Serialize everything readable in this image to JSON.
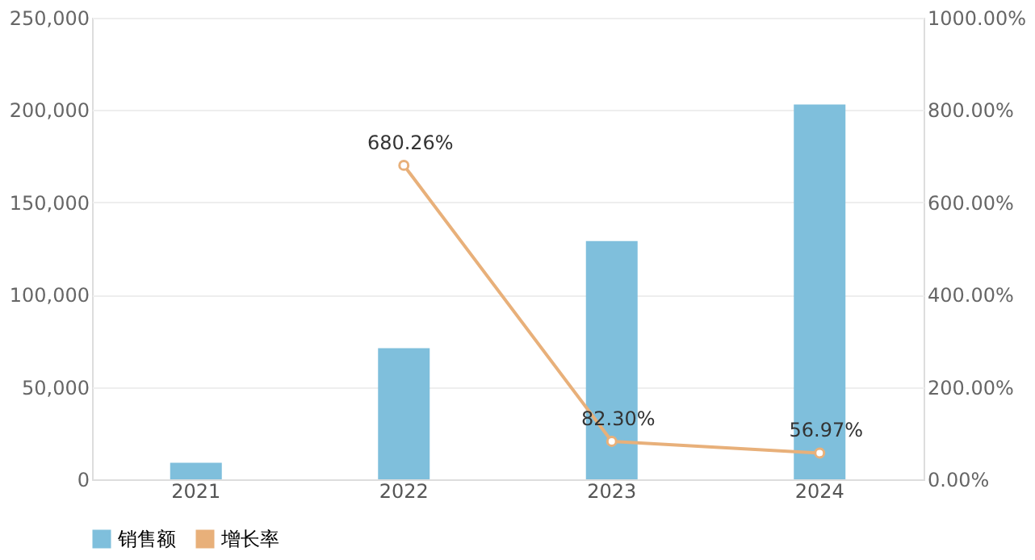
{
  "chart_data": {
    "type": "bar",
    "categories": [
      "2021",
      "2022",
      "2023",
      "2024"
    ],
    "series": [
      {
        "name": "销售额",
        "color": "#7fbfdc",
        "values": [
          9000,
          71000,
          129000,
          203000
        ]
      },
      {
        "name": "增长率",
        "type": "line",
        "axis": "y2",
        "color": "#e8b07a",
        "marker": "circle",
        "values": [
          null,
          680.26,
          82.3,
          56.97
        ],
        "value_labels": [
          null,
          "680.26%",
          "82.30%",
          "56.97%"
        ]
      }
    ],
    "ylim": [
      0,
      250000
    ],
    "yticks": [
      {
        "value": 0,
        "label": "0"
      },
      {
        "value": 50000,
        "label": "50,000"
      },
      {
        "value": 100000,
        "label": "100,000"
      },
      {
        "value": 150000,
        "label": "150,000"
      },
      {
        "value": 200000,
        "label": "200,000"
      },
      {
        "value": 250000,
        "label": "250,000"
      }
    ],
    "y2lim": [
      0,
      1000
    ],
    "y2ticks": [
      {
        "value": 0,
        "label": "0.00%"
      },
      {
        "value": 200,
        "label": "200.00%"
      },
      {
        "value": 400,
        "label": "400.00%"
      },
      {
        "value": 600,
        "label": "600.00%"
      },
      {
        "value": 800,
        "label": "800.00%"
      },
      {
        "value": 1000,
        "label": "1000.00%"
      }
    ],
    "grid": "y",
    "legend": "bottom"
  }
}
